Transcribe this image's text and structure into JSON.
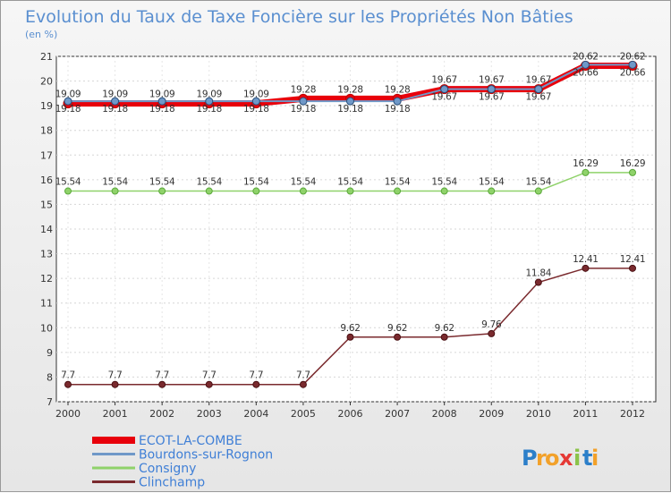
{
  "chart_data": {
    "type": "line",
    "title": "Evolution du Taux de Taxe Foncière sur les Propriétés Non Bâties",
    "subtitle": "(en %)",
    "xlabel": "",
    "ylabel": "",
    "x": [
      "2000",
      "2001",
      "2002",
      "2003",
      "2004",
      "2005",
      "2006",
      "2007",
      "2008",
      "2009",
      "2010",
      "2011",
      "2012"
    ],
    "ylim": [
      7,
      21
    ],
    "yticks": [
      "7",
      "8",
      "9",
      "10",
      "11",
      "12",
      "13",
      "14",
      "15",
      "16",
      "17",
      "18",
      "19",
      "20",
      "21"
    ],
    "series": [
      {
        "name": "ECOT-LA-COMBE",
        "color": "#e8000b",
        "values": [
          19.09,
          19.09,
          19.09,
          19.09,
          19.09,
          19.28,
          19.28,
          19.28,
          19.67,
          19.67,
          19.67,
          20.62,
          20.62
        ],
        "labels": [
          "19.09",
          "19.09",
          "19.09",
          "19.09",
          "19.09",
          "19.28",
          "19.28",
          "19.28",
          "19.67",
          "19.67",
          "19.67",
          "20.62",
          "20.62"
        ]
      },
      {
        "name": "Bourdons-sur-Rognon",
        "color": "#6f98c8",
        "values": [
          19.18,
          19.18,
          19.18,
          19.18,
          19.18,
          19.18,
          19.18,
          19.18,
          19.67,
          19.67,
          19.67,
          20.66,
          20.66
        ],
        "labels": [
          "19.18",
          "19.18",
          "19.18",
          "19.18",
          "19.18",
          "19.18",
          "19.18",
          "19.18",
          "19.67",
          "19.67",
          "19.67",
          "20.66",
          "20.66"
        ]
      },
      {
        "name": "Consigny",
        "color": "#8fd26a",
        "values": [
          15.54,
          15.54,
          15.54,
          15.54,
          15.54,
          15.54,
          15.54,
          15.54,
          15.54,
          15.54,
          15.54,
          16.29,
          16.29
        ],
        "labels": [
          "15.54",
          "15.54",
          "15.54",
          "15.54",
          "15.54",
          "15.54",
          "15.54",
          "15.54",
          "15.54",
          "15.54",
          "15.54",
          "16.29",
          "16.29"
        ]
      },
      {
        "name": "Clinchamp",
        "color": "#7a2a2e",
        "values": [
          7.7,
          7.7,
          7.7,
          7.7,
          7.7,
          7.7,
          9.62,
          9.62,
          9.62,
          9.76,
          11.84,
          12.41,
          12.41
        ],
        "labels": [
          "7.7",
          "7.7",
          "7.7",
          "7.7",
          "7.7",
          "7.7",
          "9.62",
          "9.62",
          "9.62",
          "9.76",
          "11.84",
          "12.41",
          "12.41"
        ]
      }
    ],
    "legend_position": "bottom-left"
  },
  "brand": {
    "letters": [
      "P",
      "r",
      "o",
      "x",
      "i",
      "t",
      "i"
    ],
    "colors": [
      "#2c7fc9",
      "#f2a12a",
      "#f2a12a",
      "#e53935",
      "#8bc34a",
      "#2c7fc9",
      "#f2a12a"
    ]
  }
}
